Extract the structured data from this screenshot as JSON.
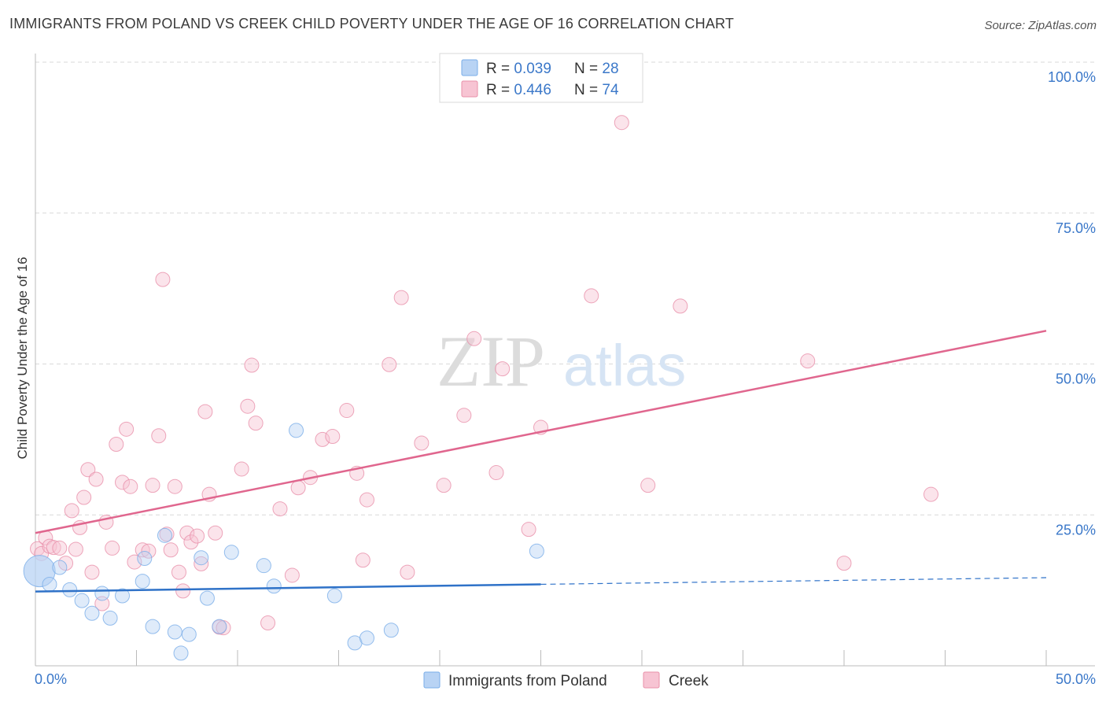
{
  "title": "IMMIGRANTS FROM POLAND VS CREEK CHILD POVERTY UNDER THE AGE OF 16 CORRELATION CHART",
  "source": "Source: ZipAtlas.com",
  "watermark": {
    "zip": "ZIP",
    "atlas": "atlas"
  },
  "colors": {
    "blue": "#7aaee8",
    "blue_fill": "#b8d3f4",
    "blue_line": "#2f72c8",
    "pink": "#e890aa",
    "pink_fill": "#f7c4d3",
    "pink_line": "#e0668e",
    "tick": "#3b78c9"
  },
  "legend": {
    "rows": [
      {
        "r_label": "R = ",
        "r_value": "0.039",
        "n_label": "N = ",
        "n_value": "28",
        "series": "blue"
      },
      {
        "r_label": "R = ",
        "r_value": "0.446",
        "n_label": "N = ",
        "n_value": "74",
        "series": "pink"
      }
    ]
  },
  "chart_data": {
    "type": "scatter",
    "title": "IMMIGRANTS FROM POLAND VS CREEK CHILD POVERTY UNDER THE AGE OF 16 CORRELATION CHART",
    "xlabel": "",
    "ylabel": "Child Poverty Under the Age of 16",
    "xlim": [
      0,
      50
    ],
    "ylim": [
      0,
      100
    ],
    "x_tick_labels": [
      "0.0%",
      "50.0%"
    ],
    "y_tick_labels": [
      "100.0%",
      "75.0%",
      "50.0%",
      "25.0%"
    ],
    "y_ticks": [
      100,
      75,
      50,
      25
    ],
    "grid": true,
    "legend_position": "bottom-center",
    "series": [
      {
        "name": "Immigrants from Poland",
        "color": "blue",
        "r": 0.039,
        "n": 28,
        "trend": {
          "x0": 0,
          "y0": 12.3,
          "x1": 25,
          "y1": 13.5,
          "dashed_to_x": 50,
          "dashed_to_y": 14.6
        },
        "points": [
          [
            0.2,
            15.7
          ],
          [
            0.7,
            13.5
          ],
          [
            1.2,
            16.3
          ],
          [
            1.7,
            12.6
          ],
          [
            2.3,
            10.8
          ],
          [
            2.8,
            8.7
          ],
          [
            3.3,
            12.0
          ],
          [
            3.7,
            7.9
          ],
          [
            4.3,
            11.6
          ],
          [
            5.4,
            17.8
          ],
          [
            5.3,
            14.0
          ],
          [
            5.8,
            6.5
          ],
          [
            6.4,
            21.6
          ],
          [
            6.9,
            5.6
          ],
          [
            7.2,
            2.1
          ],
          [
            7.6,
            5.2
          ],
          [
            8.2,
            17.9
          ],
          [
            8.5,
            11.2
          ],
          [
            9.1,
            6.5
          ],
          [
            9.7,
            18.8
          ],
          [
            11.3,
            16.6
          ],
          [
            11.8,
            13.2
          ],
          [
            12.9,
            39.0
          ],
          [
            14.8,
            11.6
          ],
          [
            15.8,
            3.8
          ],
          [
            16.4,
            4.6
          ],
          [
            17.6,
            5.9
          ],
          [
            24.8,
            19.0
          ]
        ]
      },
      {
        "name": "Creek",
        "color": "pink",
        "r": 0.446,
        "n": 74,
        "trend": {
          "x0": 0,
          "y0": 22.0,
          "x1": 50,
          "y1": 55.5
        },
        "points": [
          [
            0.1,
            19.4
          ],
          [
            0.3,
            18.6
          ],
          [
            0.5,
            21.2
          ],
          [
            0.7,
            19.8
          ],
          [
            0.9,
            19.6
          ],
          [
            1.2,
            19.5
          ],
          [
            1.5,
            17.0
          ],
          [
            1.8,
            25.7
          ],
          [
            2.0,
            19.3
          ],
          [
            2.2,
            22.9
          ],
          [
            2.4,
            27.9
          ],
          [
            2.6,
            32.5
          ],
          [
            2.8,
            15.5
          ],
          [
            3.0,
            30.9
          ],
          [
            3.3,
            10.3
          ],
          [
            3.5,
            23.8
          ],
          [
            3.8,
            19.5
          ],
          [
            4.0,
            36.7
          ],
          [
            4.3,
            30.4
          ],
          [
            4.5,
            39.2
          ],
          [
            4.7,
            29.7
          ],
          [
            4.9,
            17.2
          ],
          [
            5.3,
            19.2
          ],
          [
            5.6,
            19.0
          ],
          [
            5.8,
            29.9
          ],
          [
            6.1,
            38.1
          ],
          [
            6.3,
            64.0
          ],
          [
            6.5,
            21.8
          ],
          [
            6.7,
            19.2
          ],
          [
            6.9,
            29.7
          ],
          [
            7.1,
            15.5
          ],
          [
            7.3,
            12.4
          ],
          [
            7.5,
            22.0
          ],
          [
            7.7,
            20.5
          ],
          [
            8.0,
            21.5
          ],
          [
            8.2,
            16.9
          ],
          [
            8.4,
            42.1
          ],
          [
            8.6,
            28.4
          ],
          [
            8.9,
            22.0
          ],
          [
            9.1,
            6.4
          ],
          [
            9.3,
            6.3
          ],
          [
            10.2,
            32.6
          ],
          [
            10.5,
            43.0
          ],
          [
            10.7,
            49.8
          ],
          [
            10.9,
            40.2
          ],
          [
            11.5,
            7.1
          ],
          [
            12.1,
            26.0
          ],
          [
            12.7,
            15.0
          ],
          [
            13.0,
            29.5
          ],
          [
            13.6,
            31.2
          ],
          [
            14.2,
            37.5
          ],
          [
            14.7,
            38.0
          ],
          [
            15.4,
            42.3
          ],
          [
            15.9,
            31.9
          ],
          [
            16.2,
            17.5
          ],
          [
            16.4,
            27.5
          ],
          [
            17.5,
            49.9
          ],
          [
            18.1,
            61.0
          ],
          [
            18.4,
            15.5
          ],
          [
            19.1,
            36.9
          ],
          [
            20.2,
            29.9
          ],
          [
            21.2,
            41.5
          ],
          [
            21.7,
            54.2
          ],
          [
            22.8,
            32.0
          ],
          [
            23.1,
            49.2
          ],
          [
            24.4,
            22.6
          ],
          [
            25.0,
            39.5
          ],
          [
            27.5,
            61.3
          ],
          [
            29.0,
            90.0
          ],
          [
            30.3,
            29.9
          ],
          [
            31.9,
            59.6
          ],
          [
            38.2,
            50.5
          ],
          [
            40.0,
            17.0
          ],
          [
            44.3,
            28.4
          ]
        ]
      }
    ]
  },
  "bottom_legend": [
    {
      "label": "Immigrants from Poland",
      "series": "blue"
    },
    {
      "label": "Creek",
      "series": "pink"
    }
  ]
}
